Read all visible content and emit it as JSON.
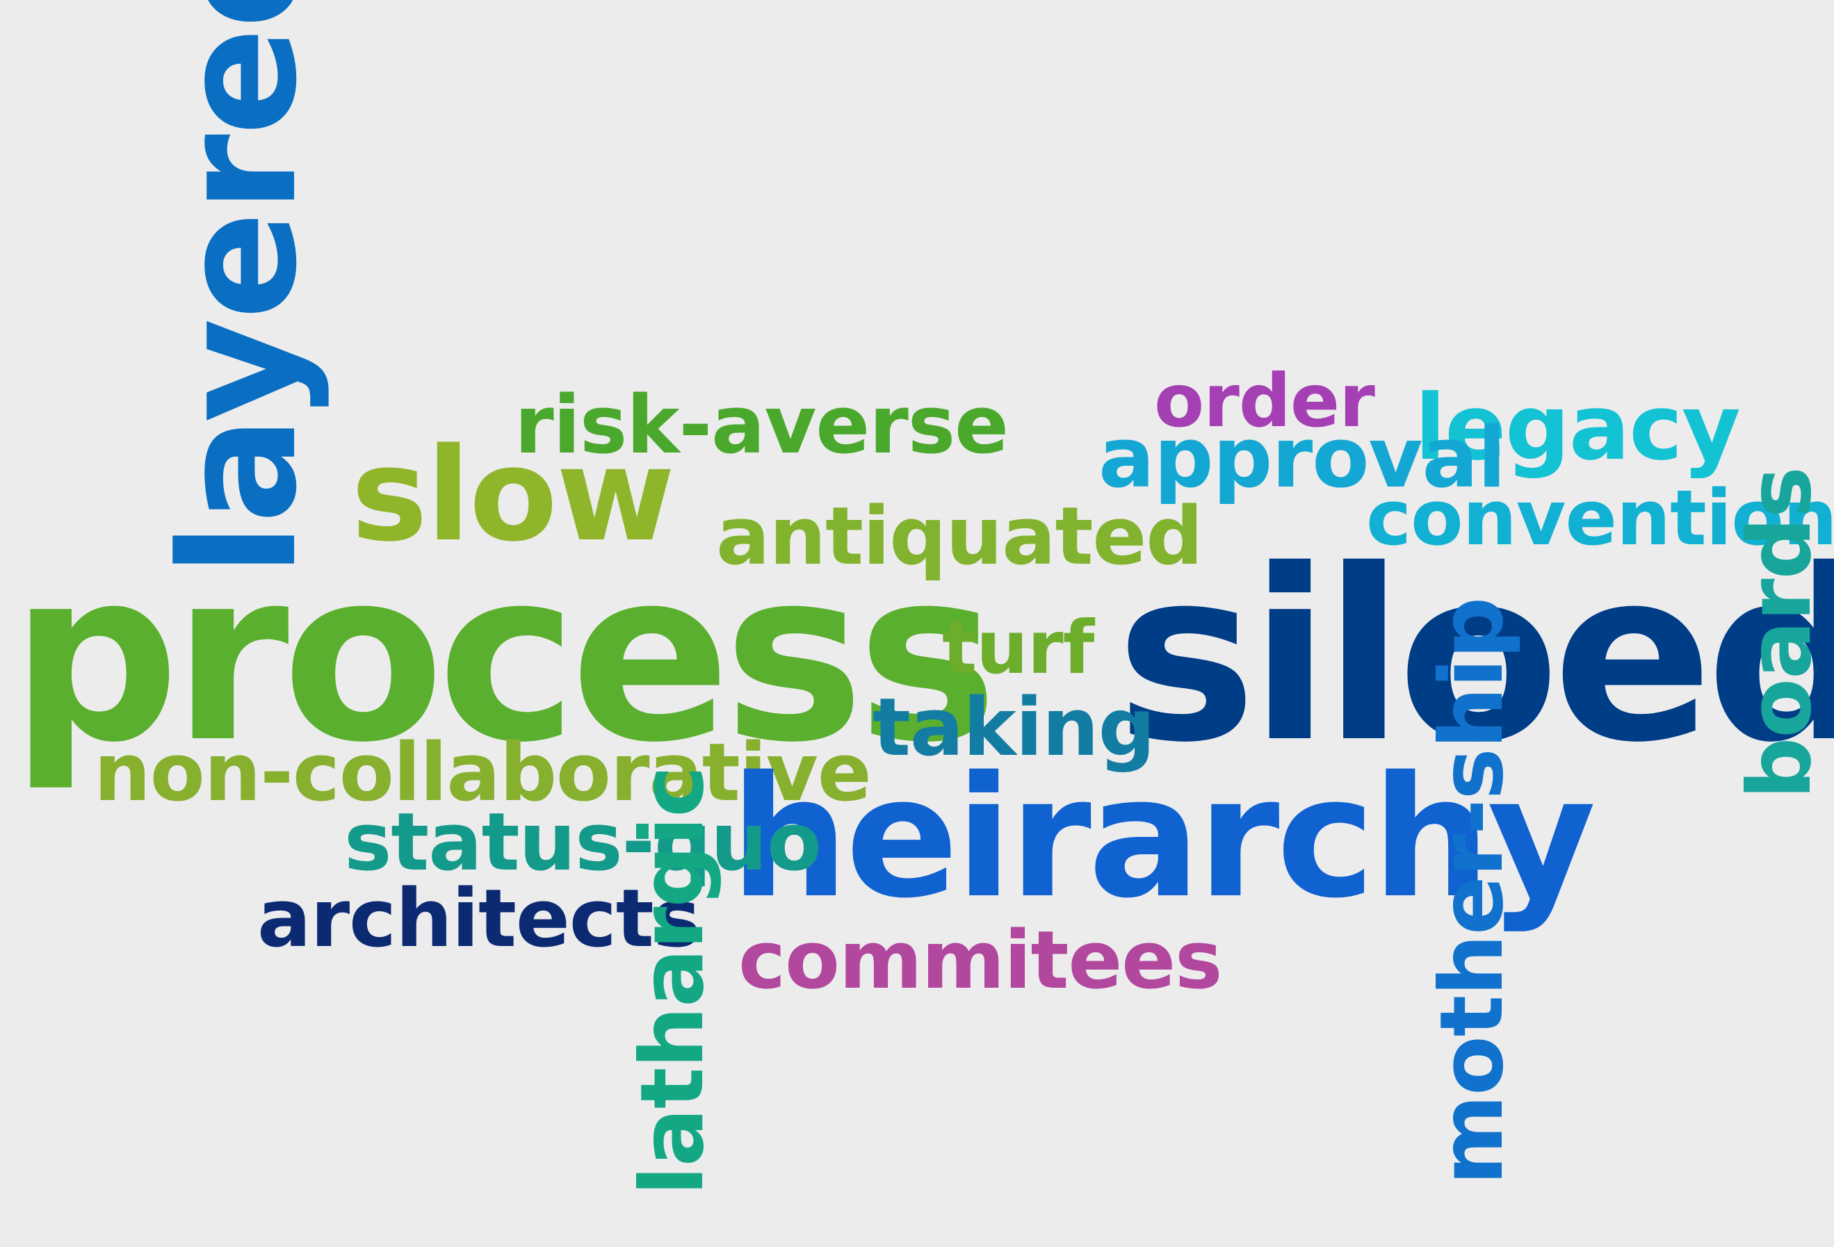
{
  "words": {
    "layered": {
      "text": "layered",
      "color": "#0a6fc2"
    },
    "slow": {
      "text": "slow",
      "color": "#8fb52a"
    },
    "risk_averse": {
      "text": "risk-averse",
      "color": "#4aa82c"
    },
    "order": {
      "text": "order",
      "color": "#a43fb4"
    },
    "legacy": {
      "text": "legacy",
      "color": "#13c2d3"
    },
    "approval": {
      "text": "approval",
      "color": "#14a7d4"
    },
    "conventional": {
      "text": "conventional",
      "color": "#12b0d2"
    },
    "antiquated": {
      "text": "antiquated",
      "color": "#82b32e"
    },
    "process": {
      "text": "process",
      "color": "#5aaf2e"
    },
    "turf": {
      "text": "turf",
      "color": "#6cae2c"
    },
    "siloed": {
      "text": "siloed",
      "color": "#003d87"
    },
    "boards": {
      "text": "boards",
      "color": "#18a59c"
    },
    "taking": {
      "text": "taking",
      "color": "#137ca2"
    },
    "non_collaborative": {
      "text": "non-collaborative",
      "color": "#86b02e"
    },
    "heirarchy": {
      "text": "heirarchy",
      "color": "#0f62d0"
    },
    "mother_ship": {
      "text": "mother-ship",
      "color": "#1172cd"
    },
    "status_quo": {
      "text": "status-quo",
      "color": "#149a8a"
    },
    "architects": {
      "text": "architects",
      "color": "#0b2a72"
    },
    "lathargic": {
      "text": "lathargic",
      "color": "#14a784"
    },
    "commitees": {
      "text": "commitees",
      "color": "#b2479e"
    }
  }
}
